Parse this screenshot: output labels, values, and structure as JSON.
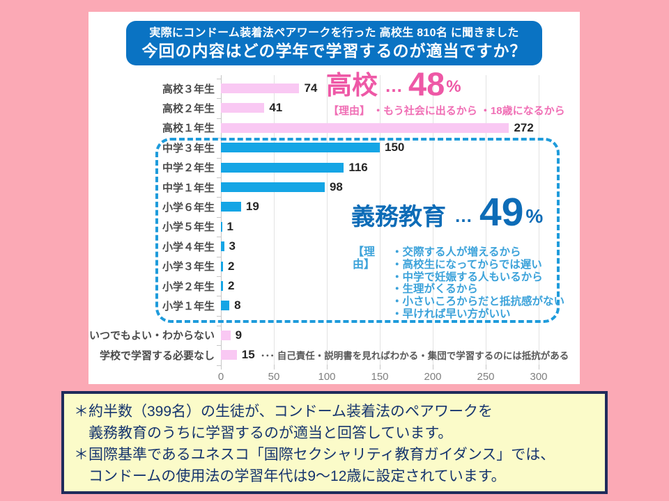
{
  "header": {
    "line1": "実際にコンドーム装着法ペアワークを行った 高校生 810名 に聞きました",
    "line2": "今回の内容はどの学年で学習するのが適当ですか？",
    "bg_color": "#0A73C3"
  },
  "chart_data": {
    "type": "bar",
    "orientation": "horizontal",
    "title": "今回の内容はどの学年で学習するのが適当ですか？",
    "categories": [
      "高校３年生",
      "高校２年生",
      "高校１年生",
      "中学３年生",
      "中学２年生",
      "中学１年生",
      "小学６年生",
      "小学５年生",
      "小学４年生",
      "小学３年生",
      "小学２年生",
      "小学１年生",
      "いつでもよい・わからない",
      "学校で学習する必要なし"
    ],
    "values": [
      74,
      41,
      272,
      150,
      116,
      98,
      19,
      1,
      3,
      2,
      2,
      8,
      9,
      15
    ],
    "groups": [
      "highschool",
      "highschool",
      "highschool",
      "compulsory",
      "compulsory",
      "compulsory",
      "compulsory",
      "compulsory",
      "compulsory",
      "compulsory",
      "compulsory",
      "compulsory",
      "other",
      "other"
    ],
    "xlim": [
      0,
      300
    ],
    "xticks": [
      0,
      50,
      100,
      150,
      200,
      250,
      300
    ],
    "grid": true,
    "bar_colors": {
      "highschool": "#F9C8F3",
      "compulsory": "#15A5E5",
      "other": "#F9C8F3"
    },
    "last_row_note": "･･･ 自己責任・説明書を見ればわかる・集団で学習するのには抵抗がある"
  },
  "annotations": {
    "highschool": {
      "label": "高校",
      "dots": "…",
      "percent": "48",
      "percent_sign": "%",
      "reasons": "【理由】 ・もう社会に出るから ・18歳になるから",
      "color": "#EE58A6"
    },
    "compulsory": {
      "label": "義務教育",
      "dots": "…",
      "percent": "49",
      "percent_sign": "%",
      "reasons_label": "【理由】",
      "reasons": [
        "・交際する人が増えるから",
        "・高校生になってからでは遅い",
        "・中学で妊娠する人もいるから",
        "・生理がくるから",
        "・小さいころからだと抵抗感がない",
        "・早ければ早い方がいい"
      ],
      "color": "#0D6CB7"
    }
  },
  "note_box": {
    "lines": [
      "＊約半数（399名）の生徒が、コンドーム装着法のペアワークを",
      "　義務教育のうちに学習するのが適当と回答しています。",
      "＊国際基準であるユネスコ「国際セクシャリティ教育ガイダンス」では、",
      "　コンドームの使用法の学習年代は9～12歳に設定されています。"
    ],
    "bg_color": "#FBFBC9",
    "border_color": "#1F2B5B"
  }
}
